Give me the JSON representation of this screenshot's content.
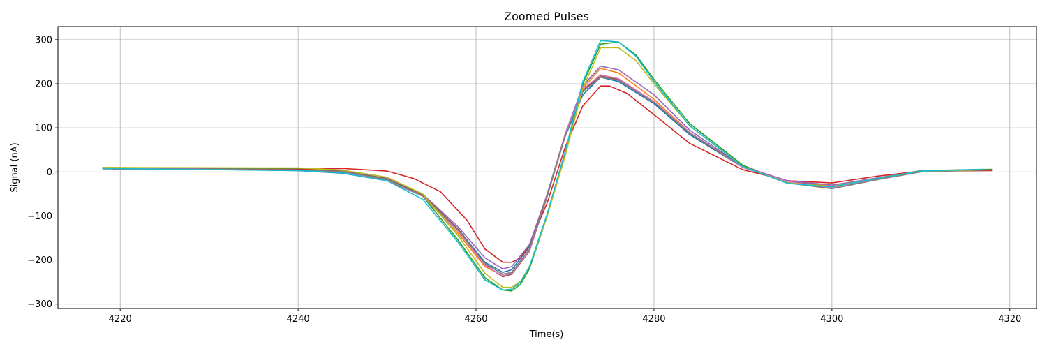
{
  "chart_data": {
    "type": "line",
    "title": "Zoomed Pulses",
    "xlabel": "Time(s)",
    "ylabel": "Signal (nA)",
    "xlim": [
      4213,
      4323
    ],
    "ylim": [
      -310,
      330
    ],
    "xticks": [
      4220,
      4240,
      4260,
      4280,
      4300,
      4320
    ],
    "yticks": [
      -300,
      -200,
      -100,
      0,
      100,
      200,
      300
    ],
    "grid": true,
    "colors": [
      "#1f77b4",
      "#ff7f0e",
      "#2ca02c",
      "#d62728",
      "#9467bd",
      "#8c564b",
      "#e377c2",
      "#7f7f7f",
      "#bcbd22",
      "#17becf"
    ],
    "series": [
      {
        "color": "#1f77b4",
        "x": [
          4218,
          4240,
          4245,
          4250,
          4254,
          4258,
          4261,
          4263,
          4264,
          4266,
          4268,
          4270,
          4272,
          4274,
          4276,
          4280,
          4284,
          4290,
          4295,
          4300,
          4305,
          4310,
          4317
        ],
        "y": [
          9,
          3,
          -3,
          -20,
          -55,
          -130,
          -205,
          -228,
          -222,
          -170,
          -50,
          80,
          175,
          215,
          205,
          155,
          85,
          10,
          -20,
          -30,
          -15,
          2,
          5
        ]
      },
      {
        "color": "#ff7f0e",
        "x": [
          4218,
          4240,
          4245,
          4250,
          4254,
          4258,
          4261,
          4263,
          4264,
          4266,
          4268,
          4270,
          4272,
          4274,
          4276,
          4280,
          4284,
          4290,
          4295,
          4300,
          4305,
          4310,
          4317
        ],
        "y": [
          10,
          6,
          0,
          -18,
          -55,
          -140,
          -215,
          -235,
          -232,
          -180,
          -55,
          85,
          190,
          235,
          225,
          165,
          90,
          10,
          -22,
          -32,
          -14,
          2,
          5
        ]
      },
      {
        "color": "#2ca02c",
        "x": [
          4218,
          4240,
          4245,
          4250,
          4254,
          4258,
          4261,
          4263,
          4264,
          4265,
          4266,
          4268,
          4270,
          4272,
          4274,
          4276,
          4278,
          4280,
          4284,
          4290,
          4295,
          4300,
          4305,
          4310,
          4318
        ],
        "y": [
          10,
          8,
          3,
          -15,
          -55,
          -155,
          -240,
          -268,
          -270,
          -255,
          -220,
          -100,
          40,
          200,
          290,
          295,
          265,
          210,
          110,
          15,
          -25,
          -35,
          -16,
          3,
          6
        ]
      },
      {
        "color": "#d62728",
        "x": [
          4219,
          4240,
          4245,
          4250,
          4253,
          4256,
          4259,
          4261,
          4263,
          4264,
          4265,
          4266,
          4268,
          4270,
          4272,
          4274,
          4275,
          4277,
          4280,
          4284,
          4290,
          4295,
          4300,
          4305,
          4310,
          4318
        ],
        "y": [
          5,
          6,
          8,
          2,
          -15,
          -45,
          -110,
          -175,
          -205,
          -205,
          -195,
          -165,
          -70,
          55,
          150,
          195,
          195,
          178,
          130,
          65,
          5,
          -20,
          -25,
          -10,
          2,
          3
        ]
      },
      {
        "color": "#9467bd",
        "x": [
          4218,
          4240,
          4245,
          4250,
          4254,
          4258,
          4261,
          4263,
          4264,
          4266,
          4268,
          4270,
          4272,
          4274,
          4276,
          4280,
          4284,
          4290,
          4295,
          4300,
          4305,
          4310,
          4317
        ],
        "y": [
          9,
          5,
          2,
          -15,
          -50,
          -125,
          -195,
          -220,
          -215,
          -165,
          -50,
          85,
          195,
          240,
          232,
          175,
          95,
          12,
          -20,
          -30,
          -14,
          2,
          5
        ]
      },
      {
        "color": "#8c564b",
        "x": [
          4218,
          4240,
          4245,
          4250,
          4254,
          4258,
          4261,
          4263,
          4264,
          4266,
          4268,
          4270,
          4272,
          4274,
          4276,
          4280,
          4284,
          4290,
          4295,
          4300,
          4305,
          4310,
          4317
        ],
        "y": [
          8,
          5,
          2,
          -16,
          -52,
          -130,
          -210,
          -238,
          -232,
          -180,
          -55,
          80,
          185,
          218,
          210,
          158,
          88,
          10,
          -22,
          -34,
          -15,
          2,
          5
        ]
      },
      {
        "color": "#e377c2",
        "x": [
          4218,
          4240,
          4245,
          4250,
          4254,
          4258,
          4261,
          4263,
          4264,
          4266,
          4268,
          4270,
          4272,
          4274,
          4276,
          4280,
          4284,
          4290,
          4295,
          4300,
          4305,
          4310,
          4317
        ],
        "y": [
          8,
          4,
          0,
          -18,
          -55,
          -135,
          -212,
          -236,
          -230,
          -178,
          -52,
          82,
          188,
          220,
          212,
          160,
          90,
          10,
          -22,
          -36,
          -16,
          2,
          5
        ]
      },
      {
        "color": "#7f7f7f",
        "x": [
          4218,
          4240,
          4245,
          4250,
          4254,
          4258,
          4261,
          4263,
          4264,
          4266,
          4268,
          4270,
          4272,
          4274,
          4276,
          4280,
          4284,
          4290,
          4295,
          4300,
          4305,
          4310,
          4318
        ],
        "y": [
          7,
          4,
          1,
          -17,
          -54,
          -132,
          -208,
          -232,
          -228,
          -175,
          -52,
          80,
          182,
          215,
          208,
          158,
          88,
          12,
          -25,
          -38,
          -18,
          0,
          5
        ]
      },
      {
        "color": "#bcbd22",
        "x": [
          4218,
          4240,
          4245,
          4250,
          4254,
          4258,
          4261,
          4263,
          4264,
          4265,
          4266,
          4268,
          4270,
          4272,
          4274,
          4276,
          4278,
          4280,
          4284,
          4290,
          4295,
          4300,
          4305,
          4310,
          4317
        ],
        "y": [
          10,
          9,
          4,
          -12,
          -50,
          -145,
          -230,
          -262,
          -262,
          -248,
          -215,
          -100,
          35,
          190,
          282,
          282,
          252,
          200,
          105,
          12,
          -25,
          -33,
          -15,
          2,
          5
        ]
      },
      {
        "color": "#17becf",
        "x": [
          4218,
          4240,
          4245,
          4250,
          4254,
          4258,
          4261,
          4263,
          4264,
          4265,
          4266,
          4268,
          4270,
          4272,
          4274,
          4276,
          4278,
          4280,
          4284,
          4290,
          4295,
          4300,
          4305,
          4310,
          4317
        ],
        "y": [
          8,
          3,
          -2,
          -20,
          -62,
          -160,
          -245,
          -268,
          -266,
          -250,
          -215,
          -95,
          45,
          205,
          298,
          295,
          262,
          205,
          105,
          12,
          -26,
          -34,
          -15,
          2,
          6
        ]
      }
    ]
  }
}
